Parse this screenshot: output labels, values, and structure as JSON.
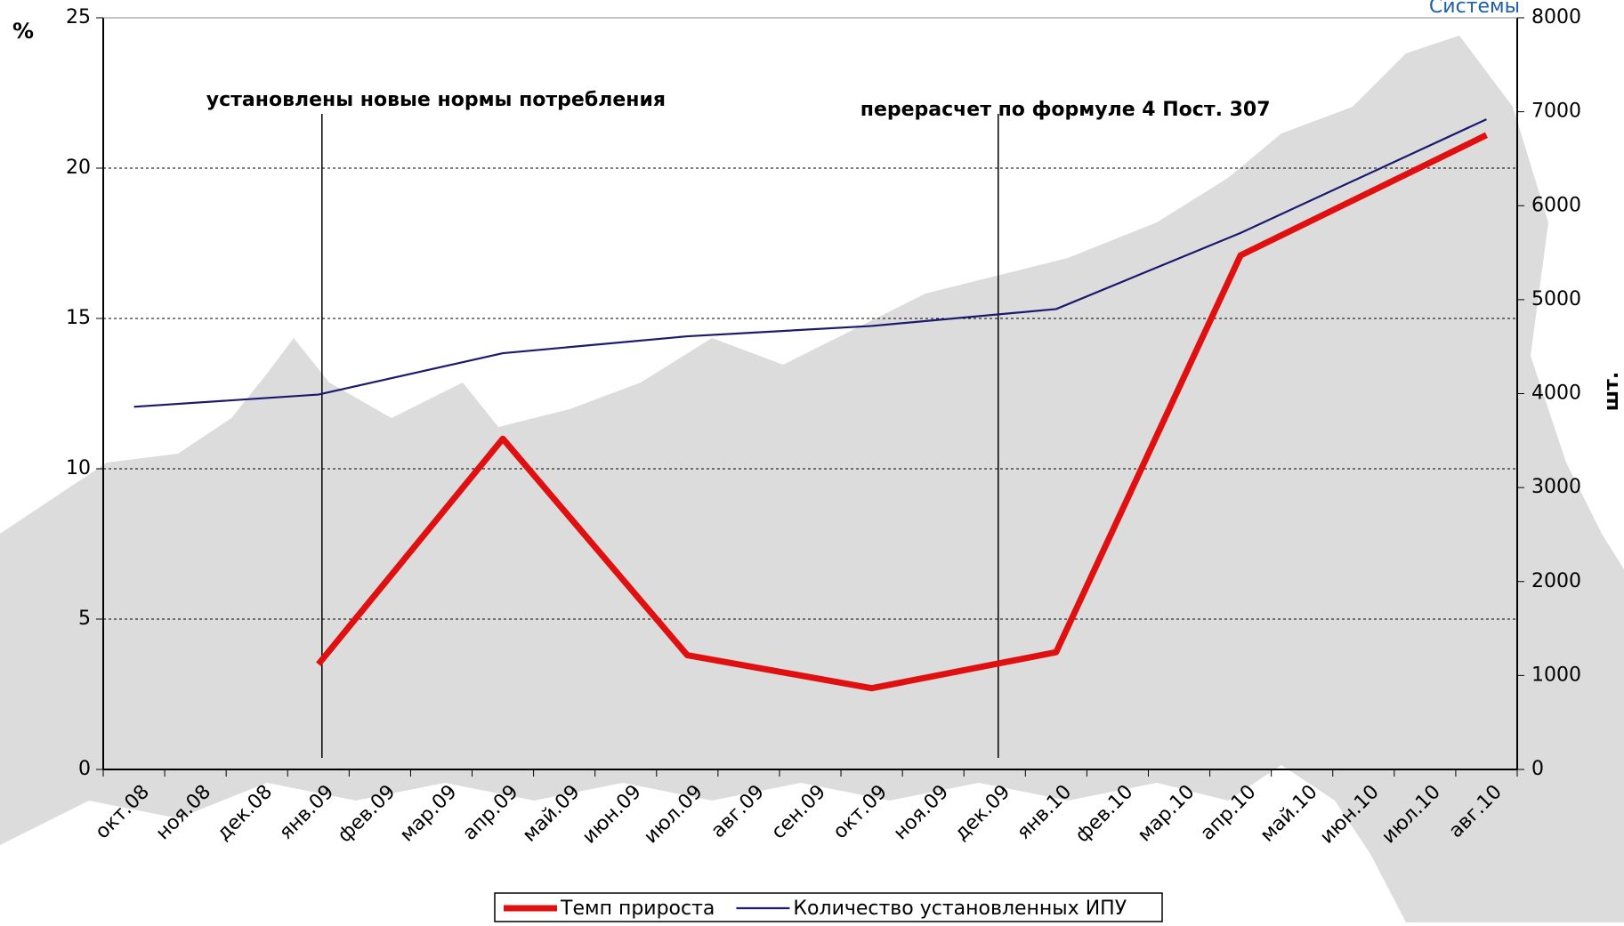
{
  "chart_data": {
    "type": "line",
    "corner_text": "Системы",
    "y_label": "%",
    "y2_label": "шт.",
    "categories": [
      "окт.08",
      "ноя.08",
      "дек.08",
      "янв.09",
      "фев.09",
      "мар.09",
      "апр.09",
      "май.09",
      "июн.09",
      "июл.09",
      "авг.09",
      "сен.09",
      "окт.09",
      "ноя.09",
      "дек.09",
      "янв.10",
      "фев.10",
      "мар.10",
      "апр.10",
      "май.10",
      "июн.10",
      "июл.10",
      "авг.10"
    ],
    "series": [
      {
        "name": "Темп прироста",
        "color": "#e01010",
        "axis": "y",
        "x": [
          "янв.09",
          "апр.09",
          "июл.09",
          "окт.09",
          "янв.10",
          "апр.10",
          "авг.10"
        ],
        "values": [
          3.5,
          11,
          3.8,
          2.7,
          3.9,
          17.1,
          21.1
        ]
      },
      {
        "name": "Количество установленных ИПУ",
        "color": "#1a1a6e",
        "axis": "y2",
        "x": [
          "окт.08",
          "янв.09",
          "апр.09",
          "июл.09",
          "окт.09",
          "янв.10",
          "апр.10",
          "авг.10"
        ],
        "values": [
          3860,
          3990,
          4430,
          4610,
          4720,
          4900,
          5710,
          6920
        ]
      }
    ],
    "annotations": [
      {
        "text": "установлены новые нормы потребления",
        "x": "янв.09"
      },
      {
        "text": "перерасчет по формуле 4 Пост. 307",
        "x": "дек.09"
      }
    ],
    "ylim": [
      0,
      25
    ],
    "yticks": [
      0,
      5,
      10,
      15,
      20,
      25
    ],
    "y2lim": [
      0,
      8000
    ],
    "y2ticks": [
      0,
      1000,
      2000,
      3000,
      4000,
      5000,
      6000,
      7000,
      8000
    ],
    "grid": true
  }
}
